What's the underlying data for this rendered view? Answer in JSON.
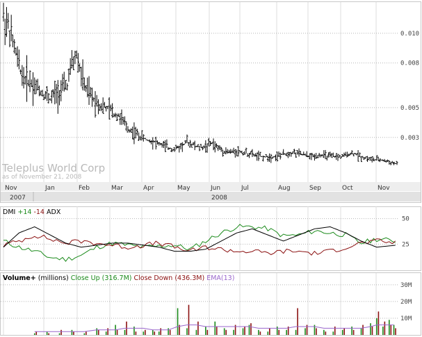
{
  "colors": {
    "price": "#000000",
    "grid": "#b5b5b5",
    "plus_di": "#1a8a1a",
    "minus_di": "#8b1010",
    "adx": "#000000",
    "close_up": "#1a8a1a",
    "close_down": "#8b1010",
    "ema": "#9966cc"
  },
  "chart_data": [
    {
      "type": "ohlc",
      "title": "Teleplus World Corp",
      "subtitle": "as of November 21, 2008",
      "xlabel": "",
      "ylabel": "",
      "ylim": [
        0,
        0.012
      ],
      "yticks": [
        {
          "v": 0.01,
          "label": "0.010"
        },
        {
          "v": 0.008,
          "label": "0.008"
        },
        {
          "v": 0.005,
          "label": "0.005"
        },
        {
          "v": 0.003,
          "label": "0.003"
        }
      ],
      "month_labels": [
        "Nov",
        "Jan",
        "Feb",
        "Mar",
        "Apr",
        "May",
        "Jun",
        "Jul",
        "Aug",
        "Sep",
        "Oct",
        "Nov"
      ],
      "year_labels": [
        "2007",
        "2008"
      ],
      "series": [
        {
          "x": [
            0,
            3,
            7,
            10,
            13,
            17,
            21,
            25,
            30,
            34,
            38,
            41,
            44,
            47,
            50,
            53,
            56,
            59,
            62,
            65,
            67,
            69,
            71,
            73,
            75,
            77,
            80,
            83,
            86,
            89,
            93,
            96,
            99,
            102,
            106,
            110,
            114,
            118,
            122,
            126,
            130,
            134,
            138,
            142,
            146,
            150,
            154,
            158,
            162,
            166,
            170,
            174,
            178,
            182,
            186,
            190,
            194,
            198,
            202,
            206,
            210,
            214,
            218,
            222,
            226,
            230,
            234,
            238,
            242,
            246,
            250,
            253
          ],
          "close": [
            0.011,
            0.0105,
            0.009,
            0.0078,
            0.007,
            0.0068,
            0.0064,
            0.006,
            0.0056,
            0.006,
            0.0062,
            0.0066,
            0.0078,
            0.0085,
            0.0072,
            0.0062,
            0.0058,
            0.0055,
            0.0052,
            0.005,
            0.0049,
            0.0048,
            0.0046,
            0.0045,
            0.0044,
            0.004,
            0.0036,
            0.0034,
            0.0032,
            0.003,
            0.0028,
            0.0028,
            0.0026,
            0.0025,
            0.0023,
            0.0022,
            0.0024,
            0.0027,
            0.0025,
            0.0023,
            0.0024,
            0.0026,
            0.0023,
            0.0021,
            0.002,
            0.0021,
            0.002,
            0.0019,
            0.0018,
            0.0017,
            0.0017,
            0.0017,
            0.0018,
            0.0019,
            0.002,
            0.0019,
            0.0018,
            0.0017,
            0.0018,
            0.0018,
            0.0017,
            0.0017,
            0.0017,
            0.0019,
            0.0019,
            0.0017,
            0.0016,
            0.0015,
            0.0015,
            0.0014,
            0.0013,
            0.0012
          ]
        }
      ]
    },
    {
      "type": "line",
      "title": "DMI",
      "legend": [
        "+14",
        "-14",
        "ADX"
      ],
      "ylim": [
        0,
        60
      ],
      "yticks": [
        {
          "v": 50,
          "label": "50"
        },
        {
          "v": 25,
          "label": "25"
        }
      ],
      "x": [
        0,
        10,
        20,
        30,
        40,
        50,
        60,
        70,
        80,
        90,
        100,
        110,
        120,
        130,
        140,
        150,
        160,
        170,
        180,
        190,
        200,
        210,
        220,
        230,
        240,
        253
      ],
      "series": [
        {
          "name": "+14",
          "values": [
            28,
            22,
            18,
            12,
            10,
            14,
            22,
            26,
            24,
            22,
            23,
            24,
            20,
            28,
            36,
            42,
            42,
            40,
            33,
            34,
            38,
            36,
            34,
            26,
            30,
            28
          ]
        },
        {
          "name": "-14",
          "values": [
            24,
            28,
            34,
            30,
            26,
            28,
            26,
            24,
            22,
            24,
            26,
            22,
            18,
            22,
            20,
            18,
            18,
            16,
            18,
            18,
            16,
            18,
            22,
            26,
            28,
            26
          ]
        },
        {
          "name": "ADX",
          "values": [
            22,
            36,
            42,
            34,
            26,
            22,
            24,
            26,
            26,
            24,
            22,
            18,
            18,
            20,
            28,
            36,
            40,
            34,
            28,
            34,
            40,
            42,
            36,
            28,
            22,
            24
          ]
        }
      ]
    },
    {
      "type": "bar",
      "title": "Volume+",
      "unit": "(millions)",
      "legend": [
        {
          "label": "Close Up (316.7M)"
        },
        {
          "label": "Close Down (436.3M)"
        },
        {
          "label": "EMA(13)"
        }
      ],
      "ylim": [
        0,
        32
      ],
      "yticks": [
        {
          "v": 30,
          "label": "30M"
        },
        {
          "v": 20,
          "label": "20M"
        },
        {
          "v": 10,
          "label": "10M"
        }
      ],
      "x": [
        20,
        28,
        36,
        44,
        52,
        60,
        66,
        72,
        78,
        84,
        90,
        96,
        100,
        106,
        112,
        118,
        124,
        130,
        136,
        142,
        148,
        154,
        158,
        164,
        170,
        176,
        182,
        188,
        194,
        200,
        206,
        212,
        218,
        224,
        230,
        236,
        240,
        244,
        248,
        251
      ],
      "up": [
        1,
        2,
        1,
        3,
        1,
        4,
        2,
        6,
        3,
        5,
        2,
        3,
        2,
        4,
        16,
        4,
        3,
        5,
        8,
        4,
        3,
        4,
        6,
        3,
        2,
        5,
        3,
        3,
        4,
        6,
        3,
        2,
        3,
        5,
        4,
        7,
        10,
        5,
        9,
        6
      ],
      "down": [
        2,
        1,
        3,
        2,
        2,
        3,
        4,
        3,
        8,
        2,
        3,
        2,
        4,
        3,
        6,
        18,
        8,
        3,
        5,
        3,
        6,
        5,
        7,
        2,
        4,
        3,
        5,
        16,
        6,
        4,
        2,
        5,
        4,
        3,
        6,
        5,
        14,
        8,
        6,
        4
      ],
      "ema": [
        2,
        2,
        2,
        2,
        2,
        3,
        3,
        3,
        4,
        4,
        4,
        3,
        3,
        3,
        5,
        6,
        6,
        5,
        5,
        5,
        5,
        5,
        5,
        4,
        4,
        4,
        4,
        5,
        5,
        5,
        4,
        4,
        4,
        4,
        4,
        5,
        6,
        6,
        6,
        6
      ]
    }
  ]
}
